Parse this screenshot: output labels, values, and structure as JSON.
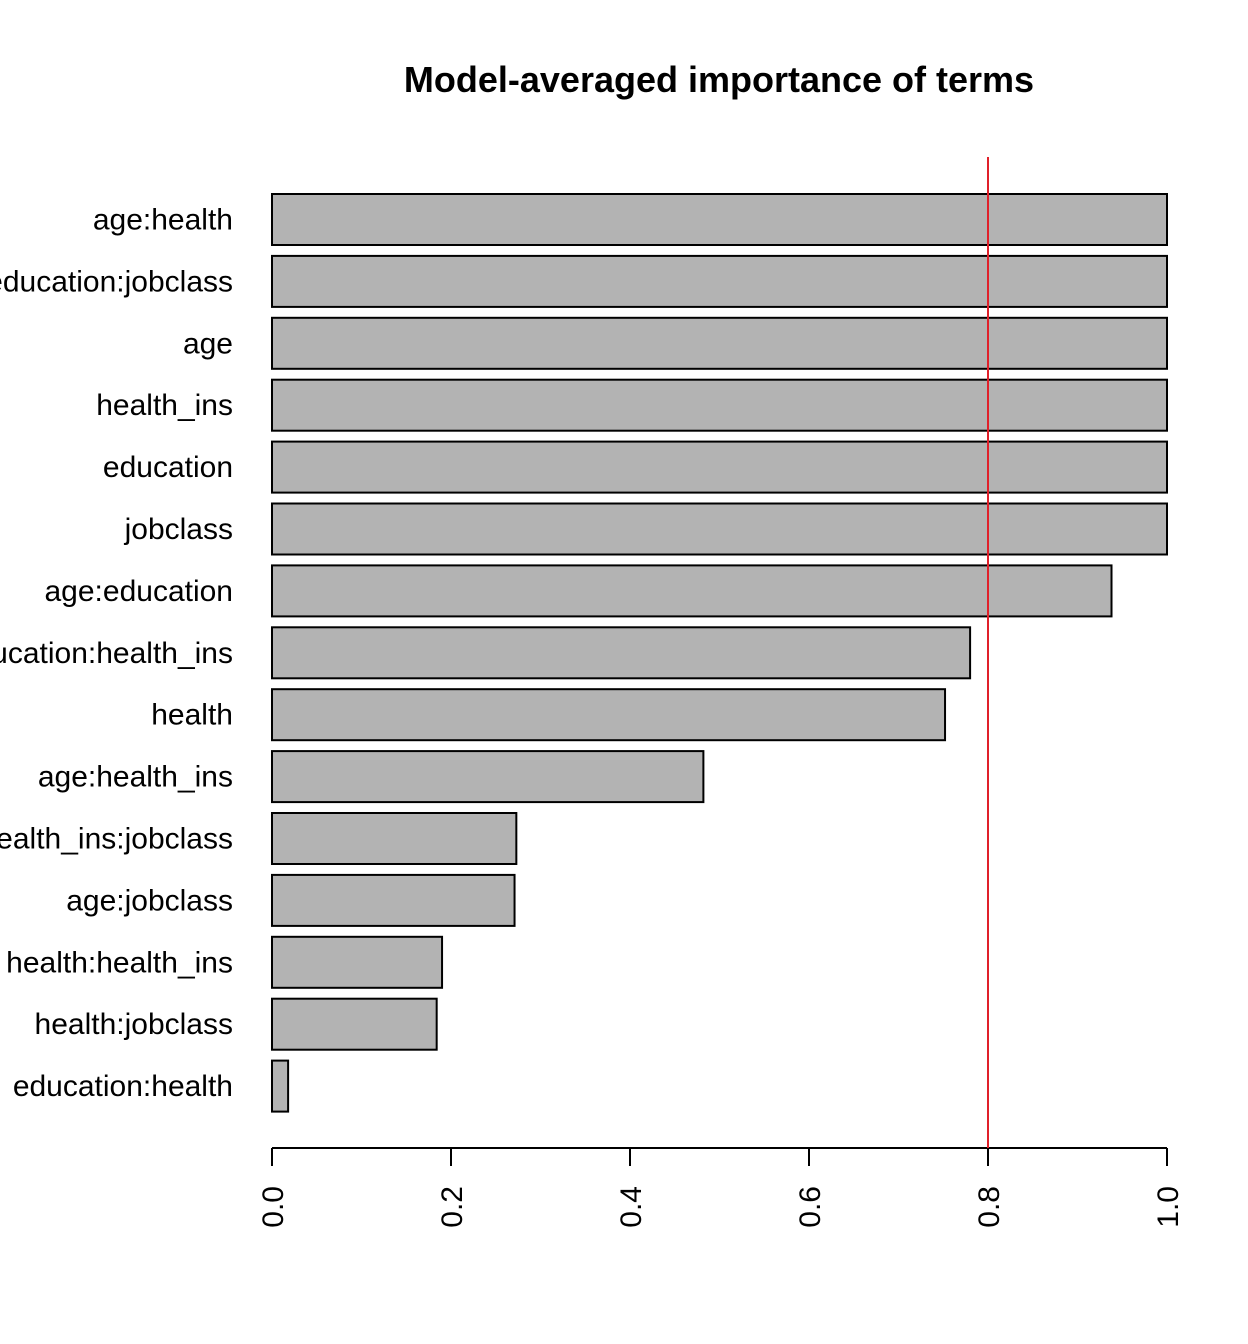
{
  "chart_data": {
    "type": "bar",
    "orientation": "horizontal",
    "title": "Model-averaged importance of terms",
    "xlabel": "",
    "ylabel": "",
    "categories": [
      "age:health",
      "education:jobclass",
      "age",
      "health_ins",
      "education",
      "jobclass",
      "age:education",
      "education:health_ins",
      "health",
      "age:health_ins",
      "health_ins:jobclass",
      "age:jobclass",
      "health:health_ins",
      "health:jobclass",
      "education:health"
    ],
    "values": [
      1.0,
      1.0,
      1.0,
      1.0,
      1.0,
      1.0,
      0.938,
      0.78,
      0.752,
      0.482,
      0.273,
      0.271,
      0.19,
      0.184,
      0.018
    ],
    "xlim": [
      0,
      1
    ],
    "ticks": [
      "0.0",
      "0.2",
      "0.4",
      "0.6",
      "0.8",
      "1.0"
    ],
    "tick_values": [
      0,
      0.2,
      0.4,
      0.6,
      0.8,
      1.0
    ],
    "reference_line": {
      "x": 0.8,
      "color": "#e0202a"
    },
    "bar_color": "#b3b3b3",
    "bar_border_color": "#000000",
    "grid": false,
    "legend": "none"
  }
}
